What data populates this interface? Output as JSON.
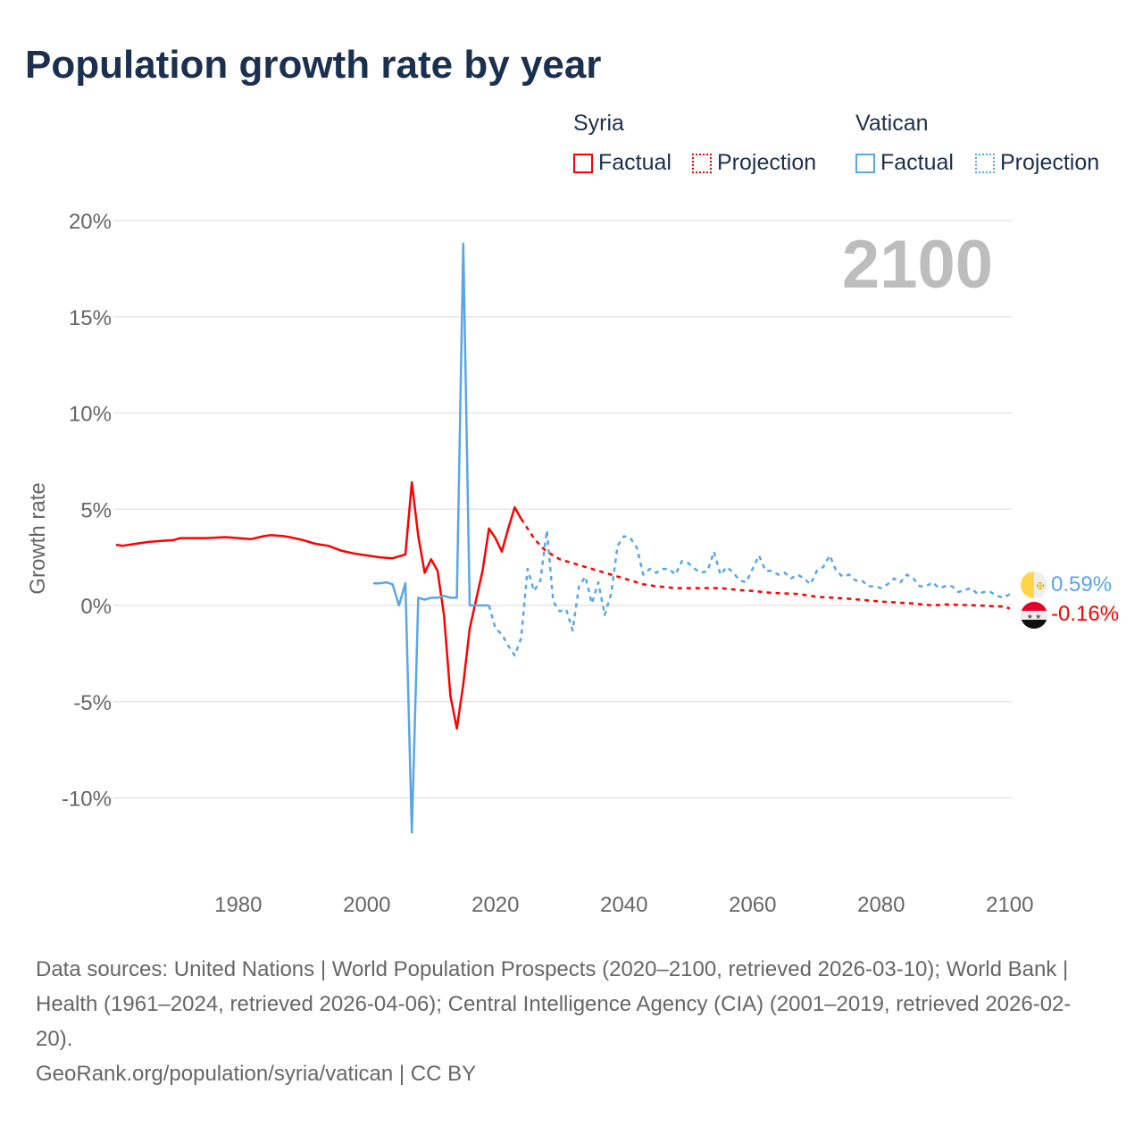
{
  "title": "Population growth rate by year",
  "legend": {
    "groups": [
      {
        "name": "Syria",
        "color": "#ff0000",
        "items": [
          "Factual",
          "Projection"
        ]
      },
      {
        "name": "Vatican",
        "color": "#5aa5ea",
        "items": [
          "Factual",
          "Projection"
        ]
      }
    ]
  },
  "year_label": "2100",
  "end_labels": {
    "vatican": "0.59%",
    "syria": "-0.16%"
  },
  "footer": {
    "sources": "Data sources: United Nations | World Population Prospects (2020–2100, retrieved 2026-03-10); World Bank | Health (1961–2024, retrieved 2026-04-06); Central Intelligence Agency (CIA) (2001–2019, retrieved 2026-02-20).",
    "credit": "GeoRank.org/population/syria/vatican | CC BY"
  },
  "chart_data": {
    "type": "line",
    "title": "Population growth rate by year",
    "xlabel": "",
    "ylabel": "Growth rate",
    "xlim": [
      1961,
      2100
    ],
    "ylim": [
      -12.5,
      20
    ],
    "xticks": [
      "1980",
      "2000",
      "2020",
      "2040",
      "2060",
      "2080",
      "2100"
    ],
    "yticks": [
      {
        "v": 20,
        "label": "20%"
      },
      {
        "v": 15,
        "label": "15%"
      },
      {
        "v": 10,
        "label": "10%"
      },
      {
        "v": 5,
        "label": "5%"
      },
      {
        "v": 0,
        "label": "0%"
      },
      {
        "v": -5,
        "label": "-5%"
      },
      {
        "v": -10,
        "label": "-10%"
      }
    ],
    "grid": true,
    "series": [
      {
        "name": "Syria Factual",
        "color": "#ff0000",
        "dashed": false,
        "x": [
          1961,
          1962,
          1964,
          1966,
          1968,
          1970,
          1971,
          1973,
          1975,
          1978,
          1980,
          1982,
          1984,
          1985,
          1987,
          1988,
          1990,
          1992,
          1994,
          1996,
          1998,
          2000,
          2002,
          2004,
          2006,
          2007,
          2008,
          2009,
          2010,
          2011,
          2012,
          2013,
          2014,
          2015,
          2016,
          2017,
          2018,
          2019,
          2020,
          2021,
          2022,
          2023,
          2024
        ],
        "y": [
          3.15,
          3.1,
          3.2,
          3.3,
          3.35,
          3.4,
          3.5,
          3.5,
          3.5,
          3.55,
          3.5,
          3.45,
          3.6,
          3.65,
          3.6,
          3.55,
          3.4,
          3.2,
          3.1,
          2.85,
          2.7,
          2.6,
          2.5,
          2.45,
          2.65,
          6.4,
          3.6,
          1.7,
          2.4,
          1.8,
          -0.5,
          -4.7,
          -6.4,
          -4.1,
          -1.2,
          0.3,
          1.8,
          4.0,
          3.5,
          2.8,
          4.0,
          5.1,
          4.5
        ]
      },
      {
        "name": "Syria Projection",
        "color": "#ff0000",
        "dashed": true,
        "x": [
          2024,
          2025,
          2026,
          2027,
          2028,
          2029,
          2030,
          2032,
          2035,
          2038,
          2040,
          2043,
          2045,
          2048,
          2050,
          2055,
          2058,
          2060,
          2063,
          2067,
          2070,
          2075,
          2080,
          2085,
          2088,
          2090,
          2095,
          2098,
          2099,
          2100
        ],
        "y": [
          4.5,
          4.0,
          3.5,
          3.1,
          2.8,
          2.6,
          2.4,
          2.2,
          1.9,
          1.6,
          1.4,
          1.1,
          1.0,
          0.9,
          0.9,
          0.9,
          0.8,
          0.75,
          0.65,
          0.6,
          0.45,
          0.35,
          0.2,
          0.1,
          0.0,
          0.05,
          0.0,
          -0.05,
          -0.05,
          -0.16
        ]
      },
      {
        "name": "Vatican Factual",
        "color": "#5aa5ea",
        "dashed": false,
        "x": [
          2001,
          2002,
          2003,
          2004,
          2005,
          2006,
          2007,
          2008,
          2009,
          2010,
          2011,
          2012,
          2013,
          2014,
          2015,
          2016,
          2017,
          2018,
          2019
        ],
        "y": [
          1.15,
          1.15,
          1.2,
          1.1,
          0.0,
          1.15,
          -11.8,
          0.4,
          0.3,
          0.4,
          0.4,
          0.5,
          0.4,
          0.4,
          18.8,
          0.0,
          0.0,
          0.0,
          0.0
        ]
      },
      {
        "name": "Vatican Projection",
        "color": "#5aa5ea",
        "dashed": true,
        "x": [
          2019,
          2020,
          2021,
          2022,
          2023,
          2024,
          2025,
          2026,
          2027,
          2028,
          2029,
          2030,
          2031,
          2032,
          2033,
          2034,
          2035,
          2036,
          2037,
          2038,
          2039,
          2040,
          2041,
          2042,
          2043,
          2044,
          2045,
          2046,
          2047,
          2048,
          2049,
          2050,
          2051,
          2052,
          2053,
          2054,
          2055,
          2056,
          2057,
          2058,
          2059,
          2060,
          2061,
          2062,
          2063,
          2064,
          2065,
          2066,
          2067,
          2068,
          2069,
          2070,
          2071,
          2072,
          2073,
          2074,
          2075,
          2076,
          2077,
          2078,
          2079,
          2080,
          2081,
          2082,
          2083,
          2084,
          2085,
          2086,
          2087,
          2088,
          2089,
          2090,
          2091,
          2092,
          2093,
          2094,
          2095,
          2096,
          2097,
          2098,
          2099,
          2100
        ],
        "y": [
          0.0,
          -1.2,
          -1.5,
          -2.1,
          -2.6,
          -1.7,
          1.9,
          0.75,
          1.3,
          3.9,
          0.2,
          -0.3,
          -0.2,
          -1.3,
          1.0,
          1.5,
          0.1,
          1.2,
          -0.5,
          0.6,
          3.1,
          3.6,
          3.5,
          3.0,
          1.6,
          1.9,
          1.7,
          1.9,
          1.9,
          1.6,
          2.3,
          2.2,
          1.9,
          1.7,
          1.8,
          2.8,
          1.6,
          2.0,
          1.7,
          1.3,
          1.2,
          1.9,
          2.6,
          1.8,
          1.8,
          1.6,
          1.7,
          1.4,
          1.6,
          1.4,
          1.1,
          1.8,
          2.0,
          2.6,
          1.8,
          1.5,
          1.6,
          1.3,
          1.3,
          1.0,
          1.0,
          0.9,
          1.1,
          1.4,
          1.2,
          1.6,
          1.4,
          1.0,
          1.0,
          1.2,
          0.9,
          1.0,
          1.0,
          0.7,
          0.8,
          0.9,
          0.6,
          0.7,
          0.7,
          0.5,
          0.4,
          0.59
        ]
      }
    ]
  }
}
